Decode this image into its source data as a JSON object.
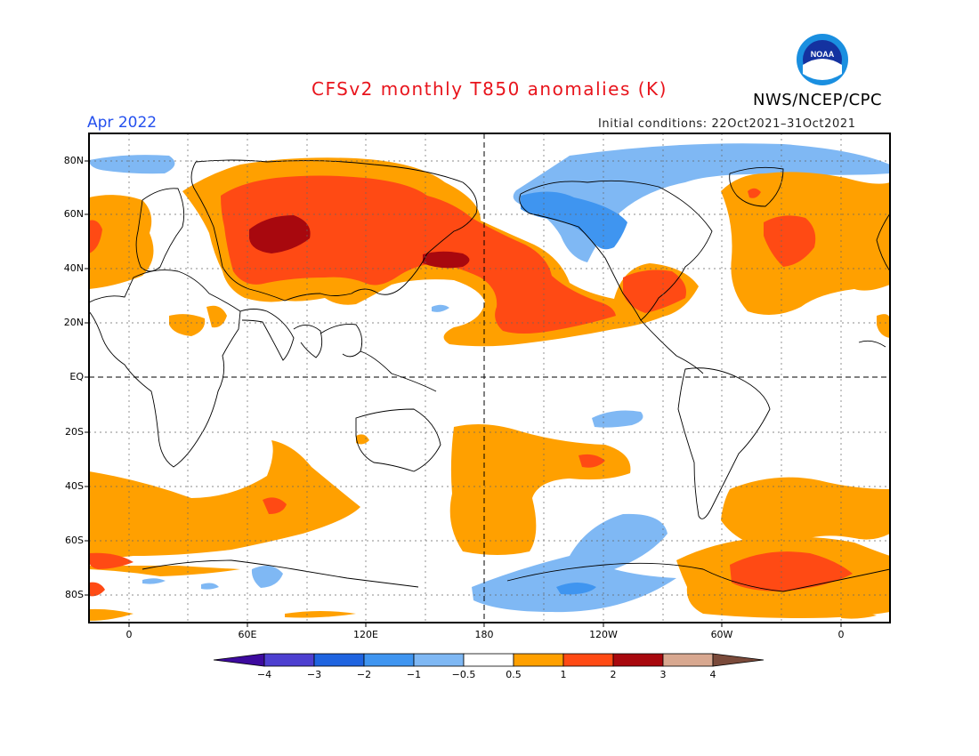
{
  "title": "CFSv2 monthly T850 anomalies (K)",
  "period": "Apr 2022",
  "agency": "NWS/NCEP/CPC",
  "logo_text": "NOAA",
  "initial_conditions": "Initial conditions: 22Oct2021–31Oct2021",
  "map": {
    "projection": "equirectangular, 180 center",
    "lat_labels": [
      "80N",
      "60N",
      "40N",
      "20N",
      "EQ",
      "20S",
      "40S",
      "60S",
      "80S"
    ],
    "lon_labels": [
      "0",
      "60E",
      "120E",
      "180",
      "120W",
      "60W",
      "0"
    ],
    "grid": "dotted, 30 degree",
    "reference_lines": [
      "equator (dashed)",
      "180 meridian (dashed)"
    ]
  },
  "colorbar": {
    "ticks": [
      "−4",
      "−3",
      "−2",
      "−1",
      "−0.5",
      "0.5",
      "1",
      "2",
      "3",
      "4"
    ],
    "colors": [
      "#3d0a9e",
      "#4d3fd0",
      "#1f64e0",
      "#3f95f0",
      "#7fb8f4",
      "#ffffff",
      "#ffa000",
      "#ff4a14",
      "#a8080e",
      "#d8a890",
      "#7a4a3a"
    ]
  },
  "anomaly_colors": {
    "neg_1": "#7fb8f4",
    "neg_2": "#3f95f0",
    "pos_05": "#ffa000",
    "pos_1": "#ff4a14",
    "pos_2": "#a8080e"
  }
}
